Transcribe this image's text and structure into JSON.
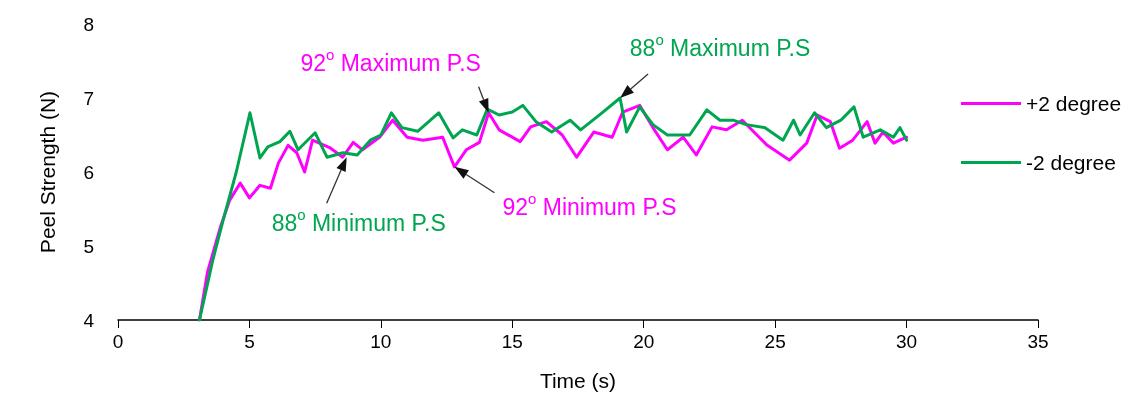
{
  "chart_data": {
    "type": "line",
    "xlabel": "Time (s)",
    "ylabel": "Peel Strength (N)",
    "xlim": [
      0,
      35
    ],
    "xticks": [
      0,
      5,
      10,
      15,
      20,
      25,
      30,
      35
    ],
    "ylim": [
      4,
      8
    ],
    "yticks": [
      4,
      5,
      6,
      7,
      8
    ],
    "grid": false,
    "legend": "right",
    "marker": "none",
    "line_style": "solid",
    "series": [
      {
        "name": "+2 degree",
        "color": "#ff00ff",
        "x": [
          3.1,
          3.4,
          3.9,
          4.25,
          4.65,
          5.0,
          5.4,
          5.8,
          6.1,
          6.47,
          6.8,
          7.1,
          7.4,
          8.05,
          8.55,
          8.95,
          9.3,
          9.95,
          10.45,
          11.0,
          11.6,
          12.35,
          12.8,
          13.25,
          13.75,
          14.1,
          14.5,
          15.3,
          15.7,
          16.3,
          16.9,
          17.45,
          18.1,
          18.8,
          19.2,
          19.85,
          20.35,
          20.9,
          21.5,
          22.0,
          22.6,
          23.15,
          23.75,
          24.7,
          25.55,
          26.2,
          26.6,
          27.1,
          27.45,
          27.95,
          28.5,
          28.8,
          29.1,
          29.5,
          30.0
        ],
        "values": [
          4.0,
          4.64,
          5.26,
          5.62,
          5.85,
          5.65,
          5.82,
          5.78,
          6.12,
          6.36,
          6.26,
          6.0,
          6.43,
          6.33,
          6.2,
          6.4,
          6.3,
          6.47,
          6.7,
          6.47,
          6.43,
          6.47,
          6.07,
          6.3,
          6.4,
          6.8,
          6.57,
          6.41,
          6.61,
          6.68,
          6.5,
          6.2,
          6.54,
          6.47,
          6.81,
          6.9,
          6.6,
          6.3,
          6.47,
          6.23,
          6.61,
          6.57,
          6.7,
          6.36,
          6.16,
          6.39,
          6.77,
          6.68,
          6.32,
          6.43,
          6.68,
          6.39,
          6.54,
          6.39,
          6.47
        ]
      },
      {
        "name": "-2 degree",
        "color": "#00a550",
        "x": [
          3.1,
          3.6,
          4.0,
          4.5,
          5.02,
          5.4,
          5.7,
          6.16,
          6.54,
          6.85,
          7.5,
          7.95,
          8.56,
          9.1,
          9.6,
          10.0,
          10.4,
          10.8,
          11.4,
          12.2,
          12.75,
          13.1,
          13.65,
          14.05,
          14.5,
          15.0,
          15.4,
          15.9,
          16.5,
          17.2,
          17.6,
          18.45,
          19.1,
          19.35,
          19.85,
          20.35,
          20.9,
          21.75,
          22.4,
          22.9,
          23.4,
          23.9,
          24.6,
          25.3,
          25.7,
          25.95,
          26.5,
          26.95,
          27.5,
          28.0,
          28.35,
          29.0,
          29.5,
          29.75,
          30.0
        ],
        "values": [
          4.0,
          4.8,
          5.35,
          6.0,
          6.8,
          6.19,
          6.34,
          6.41,
          6.55,
          6.3,
          6.53,
          6.2,
          6.26,
          6.23,
          6.43,
          6.5,
          6.8,
          6.6,
          6.55,
          6.8,
          6.46,
          6.57,
          6.5,
          6.85,
          6.77,
          6.81,
          6.9,
          6.68,
          6.54,
          6.7,
          6.57,
          6.81,
          7.0,
          6.54,
          6.88,
          6.64,
          6.5,
          6.5,
          6.84,
          6.7,
          6.7,
          6.64,
          6.6,
          6.43,
          6.7,
          6.5,
          6.8,
          6.6,
          6.7,
          6.88,
          6.47,
          6.57,
          6.47,
          6.6,
          6.43
        ]
      }
    ],
    "annotations": [
      {
        "text": "92$^{o}$ Maximum P.S",
        "x": 14.1,
        "y": 6.8
      },
      {
        "text": "88$^{o}$ Maximum P.S",
        "x": 19.1,
        "y": 7.0
      },
      {
        "text": "92$^{o}$ Minimum P.S",
        "x": 12.8,
        "y": 6.07
      },
      {
        "text": "88$^{o}$ Minimum P.S",
        "x": 8.7,
        "y": 6.2
      }
    ]
  }
}
